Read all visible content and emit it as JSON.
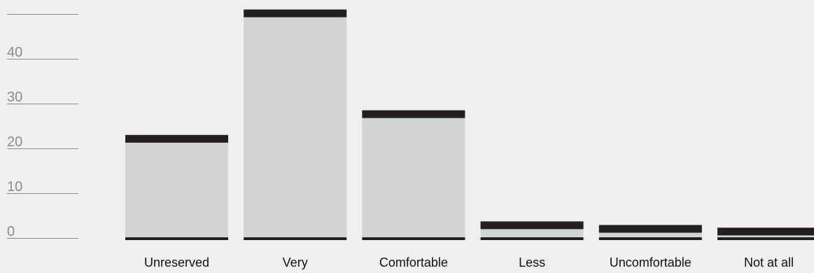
{
  "chart_data": {
    "type": "bar",
    "title": "",
    "xlabel": "",
    "ylabel": "",
    "categories": [
      "Unreserved",
      "Very",
      "Comfortable",
      "Less",
      "Uncomfortable",
      "Not at all"
    ],
    "values": [
      23,
      51,
      28.5,
      3.7,
      2.9,
      2.3
    ],
    "ylim": [
      0,
      50
    ],
    "yticks": [
      0,
      10,
      20,
      30,
      40,
      50
    ],
    "ytick_labels": [
      "0",
      "10",
      "20",
      "30",
      "40",
      ""
    ],
    "grid": false,
    "legend": "none",
    "colors": {
      "background": "#efefef",
      "bar_fill": "#d2d3d5",
      "bar_cap": "#231f20",
      "axis_line": "#8c8c8c",
      "tick_text": "#8c8c8c",
      "category_text": "#111111"
    }
  }
}
